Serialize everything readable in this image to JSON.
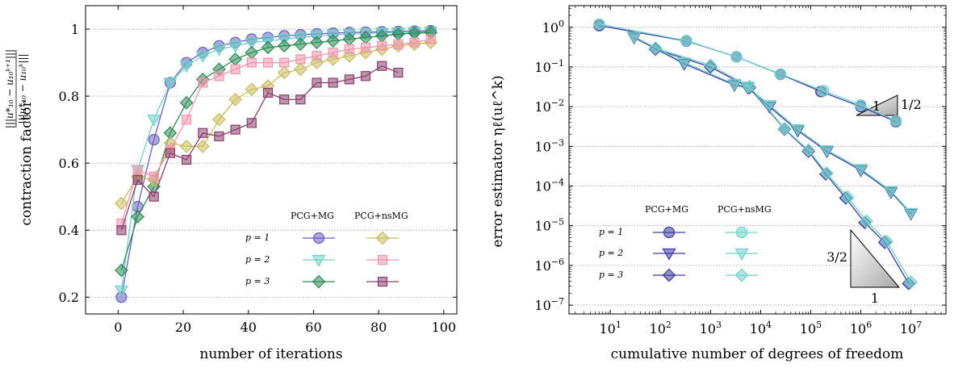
{
  "colors": {
    "pcg_mg_p1": "#6a5fbe",
    "pcg_mg_p2": "#6fd1c9",
    "pcg_mg_p3": "#2e8b57",
    "nsmg_p1": "#c8bd5e",
    "nsmg_p2": "#ee96ae",
    "nsmg_p3": "#8a3f6a",
    "right_mg": "#3c3aa0",
    "right_nsmg": "#6fd1c9"
  },
  "chart_data": [
    {
      "type": "line",
      "xlabel": "number of iterations",
      "ylabel": "contraction factor",
      "ylabel_formula": "|||u*10 − u10^(k+1)||| / |||u*10 − u10^k|||",
      "xlim": [
        -10,
        104
      ],
      "ylim": [
        0.15,
        1.07
      ],
      "xticks": [
        "0",
        "20",
        "40",
        "60",
        "80",
        "100"
      ],
      "yticks": [
        "0.2",
        "0.4",
        "0.6",
        "0.8",
        "1"
      ],
      "grid": "horizontal dotted",
      "legend": {
        "placement": "bottom-right",
        "col_headers": [
          "PCG+MG",
          "PCG+nsMG"
        ],
        "rows": [
          "p = 1",
          "p = 2",
          "p = 3"
        ]
      },
      "series": [
        {
          "name": "PCG+MG p = 1",
          "marker": "circle",
          "x": [
            1,
            6,
            11,
            16,
            21,
            26,
            31,
            36,
            41,
            46,
            51,
            56,
            61,
            66,
            71,
            76,
            81,
            86,
            91,
            96
          ],
          "y": [
            0.2,
            0.47,
            0.67,
            0.84,
            0.9,
            0.93,
            0.95,
            0.96,
            0.97,
            0.975,
            0.98,
            0.983,
            0.986,
            0.988,
            0.99,
            0.991,
            0.992,
            0.993,
            0.994,
            0.995
          ]
        },
        {
          "name": "PCG+MG p = 2",
          "marker": "triangle",
          "x": [
            1,
            6,
            11,
            16,
            21,
            26,
            31,
            36,
            41,
            46,
            51,
            56,
            61,
            66,
            71,
            76,
            81,
            86,
            91,
            96
          ],
          "y": [
            0.22,
            0.58,
            0.73,
            0.84,
            0.89,
            0.92,
            0.94,
            0.95,
            0.96,
            0.965,
            0.97,
            0.975,
            0.98,
            0.983,
            0.985,
            0.987,
            0.989,
            0.99,
            0.991,
            0.992
          ]
        },
        {
          "name": "PCG+MG p = 3",
          "marker": "diamond",
          "x": [
            1,
            6,
            11,
            16,
            21,
            26,
            31,
            36,
            41,
            46,
            51,
            56,
            61,
            66,
            71,
            76,
            81,
            86,
            91,
            96
          ],
          "y": [
            0.28,
            0.44,
            0.53,
            0.69,
            0.78,
            0.85,
            0.88,
            0.91,
            0.93,
            0.945,
            0.95,
            0.955,
            0.96,
            0.965,
            0.97,
            0.975,
            0.98,
            0.985,
            0.988,
            0.99
          ]
        },
        {
          "name": "PCG+nsMG p = 1",
          "marker": "diamond",
          "x": [
            1,
            6,
            11,
            16,
            21,
            26,
            31,
            36,
            41,
            46,
            51,
            56,
            61,
            66,
            71,
            76,
            81,
            86,
            91,
            96
          ],
          "y": [
            0.48,
            0.56,
            0.55,
            0.66,
            0.65,
            0.65,
            0.73,
            0.79,
            0.82,
            0.83,
            0.87,
            0.88,
            0.9,
            0.91,
            0.92,
            0.93,
            0.94,
            0.95,
            0.955,
            0.96
          ]
        },
        {
          "name": "PCG+nsMG p = 2",
          "marker": "square",
          "x": [
            1,
            6,
            11,
            16,
            21,
            26,
            31,
            36,
            41,
            46,
            51,
            56,
            61,
            66,
            71,
            76,
            81,
            86,
            91,
            96
          ],
          "y": [
            0.42,
            0.58,
            0.56,
            0.64,
            0.73,
            0.84,
            0.86,
            0.88,
            0.9,
            0.9,
            0.9,
            0.91,
            0.92,
            0.93,
            0.94,
            0.945,
            0.95,
            0.955,
            0.96,
            0.97
          ]
        },
        {
          "name": "PCG+nsMG p = 3",
          "marker": "square",
          "x": [
            1,
            6,
            11,
            16,
            21,
            26,
            31,
            36,
            41,
            46,
            51,
            56,
            61,
            66,
            71,
            76,
            81,
            86
          ],
          "y": [
            0.4,
            0.55,
            0.5,
            0.63,
            0.61,
            0.69,
            0.68,
            0.7,
            0.72,
            0.81,
            0.79,
            0.79,
            0.84,
            0.84,
            0.85,
            0.86,
            0.89,
            0.87
          ]
        }
      ]
    },
    {
      "type": "line",
      "xscale": "log",
      "yscale": "log",
      "xlabel": "cumulative number of degrees of freedom",
      "ylabel": "error estimator ηℓ(uℓ^k)",
      "xlim": [
        1.5,
        50000000
      ],
      "ylim": [
        6e-08,
        3.5
      ],
      "xticks": [
        "10^1",
        "10^2",
        "10^3",
        "10^4",
        "10^5",
        "10^6",
        "10^7"
      ],
      "yticks": [
        "10^0",
        "10^-1",
        "10^-2",
        "10^-3",
        "10^-4",
        "10^-5",
        "10^-6",
        "10^-7"
      ],
      "grid": "horizontal dotted",
      "legend": {
        "placement": "bottom-left",
        "col_headers": [
          "PCG+MG",
          "PCG+nsMG"
        ],
        "rows": [
          "p = 1",
          "p = 2",
          "p = 3"
        ]
      },
      "annotations": [
        {
          "text": "1",
          "slope_triangle": "upper",
          "rise": "1/2"
        },
        {
          "text": "3/2",
          "slope_triangle": "lower",
          "run": "1"
        }
      ],
      "series": [
        {
          "name": "PCG+MG p = 1",
          "marker": "circle",
          "x": [
            6,
            330,
            3300,
            25000,
            160000,
            1000000,
            5000000
          ],
          "y": [
            1.1,
            0.45,
            0.18,
            0.065,
            0.024,
            0.01,
            0.0042
          ]
        },
        {
          "name": "PCG+MG p = 2",
          "marker": "triangle",
          "x": [
            30,
            300,
            3000,
            5500,
            15000,
            55000,
            210000,
            1000000,
            4000000,
            10000000
          ],
          "y": [
            0.55,
            0.12,
            0.035,
            0.03,
            0.01,
            0.0025,
            0.00075,
            0.00025,
            7e-05,
            2e-05
          ]
        },
        {
          "name": "PCG+MG p = 3",
          "marker": "diamond",
          "x": [
            80,
            1000,
            6000,
            30000,
            90000,
            200000,
            500000,
            1200000,
            3000000,
            9000000
          ],
          "y": [
            0.28,
            0.1,
            0.03,
            0.0027,
            0.00075,
            0.0002,
            5e-05,
            1.2e-05,
            3.8e-06,
            3.5e-07
          ]
        },
        {
          "name": "PCG+nsMG p = 1",
          "marker": "circle",
          "x": [
            6,
            330,
            3300,
            25000,
            180000,
            1000000,
            5000000
          ],
          "y": [
            1.2,
            0.46,
            0.18,
            0.066,
            0.025,
            0.011,
            0.0044
          ]
        },
        {
          "name": "PCG+nsMG p = 2",
          "marker": "triangle",
          "x": [
            30,
            300,
            3000,
            5500,
            15000,
            55000,
            210000,
            1000000,
            4000000,
            10000000
          ],
          "y": [
            0.58,
            0.13,
            0.037,
            0.032,
            0.011,
            0.0027,
            0.0008,
            0.00027,
            7.5e-05,
            2.1e-05
          ]
        },
        {
          "name": "PCG+nsMG p = 3",
          "marker": "diamond",
          "x": [
            80,
            1000,
            6000,
            30000,
            90000,
            210000,
            550000,
            1300000,
            3300000,
            10000000
          ],
          "y": [
            0.3,
            0.11,
            0.032,
            0.0028,
            0.0008,
            0.00021,
            5.2e-05,
            1.3e-05,
            4e-06,
            3.8e-07
          ]
        }
      ]
    }
  ]
}
